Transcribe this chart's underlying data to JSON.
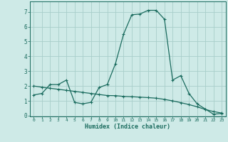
{
  "title": "",
  "xlabel": "Humidex (Indice chaleur)",
  "bg_color": "#ceeae7",
  "grid_color": "#a8ceca",
  "line_color": "#1a6b5e",
  "xlim": [
    -0.5,
    23.5
  ],
  "ylim": [
    -0.05,
    7.7
  ],
  "xticks": [
    0,
    1,
    2,
    3,
    4,
    5,
    6,
    7,
    8,
    9,
    10,
    11,
    12,
    13,
    14,
    15,
    16,
    17,
    18,
    19,
    20,
    21,
    22,
    23
  ],
  "yticks": [
    0,
    1,
    2,
    3,
    4,
    5,
    6,
    7
  ],
  "series1_x": [
    0,
    1,
    2,
    3,
    4,
    5,
    6,
    7,
    8,
    9,
    10,
    11,
    12,
    13,
    14,
    15,
    16,
    17,
    18,
    19,
    20,
    21,
    22,
    23
  ],
  "series1_y": [
    1.4,
    1.5,
    2.1,
    2.1,
    2.4,
    0.9,
    0.8,
    0.9,
    1.9,
    2.1,
    3.5,
    5.5,
    6.8,
    6.85,
    7.1,
    7.1,
    6.5,
    2.4,
    2.7,
    1.5,
    0.8,
    0.45,
    0.1,
    0.15
  ],
  "series2_x": [
    0,
    1,
    2,
    3,
    4,
    5,
    6,
    7,
    8,
    9,
    10,
    11,
    12,
    13,
    14,
    15,
    16,
    17,
    18,
    19,
    20,
    21,
    22,
    23
  ],
  "series2_y": [
    2.0,
    1.92,
    1.85,
    1.78,
    1.71,
    1.64,
    1.57,
    1.5,
    1.43,
    1.36,
    1.35,
    1.3,
    1.28,
    1.25,
    1.22,
    1.18,
    1.1,
    1.0,
    0.88,
    0.75,
    0.6,
    0.42,
    0.28,
    0.18
  ]
}
